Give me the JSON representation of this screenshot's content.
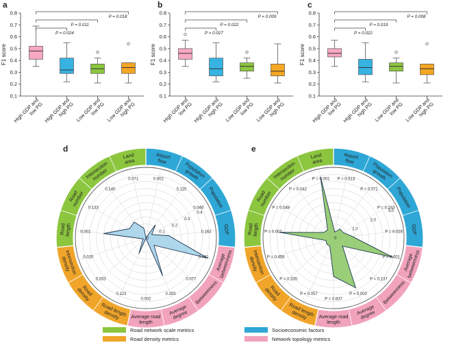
{
  "legend": [
    {
      "label": "Road network scale metrics",
      "color": "#8cc63f"
    },
    {
      "label": "Socioeconomic factors",
      "color": "#2ea7d6"
    },
    {
      "label": "Road density metrics",
      "color": "#f0a52a"
    },
    {
      "label": "Network topology metrics",
      "color": "#f2a3bc"
    }
  ],
  "chart_data": [
    {
      "panel": "a",
      "type": "box",
      "ylabel": "F1 score",
      "ylim": [
        0.1,
        0.8
      ],
      "yticks": [
        "0.1",
        "0.2",
        "0.3",
        "0.4",
        "0.5",
        "0.6",
        "0.7",
        "0.8"
      ],
      "categories": [
        "High GDP and low PG",
        "High GDP and high PG",
        "Low GDP and low PG",
        "Low GDP and high PG"
      ],
      "colors": [
        "#f7a8c2",
        "#36b3e3",
        "#8cc63f",
        "#f5a623"
      ],
      "boxes": [
        {
          "whislo": 0.35,
          "q1": 0.41,
          "med": 0.48,
          "q3": 0.52,
          "whishi": 0.69,
          "fliers": []
        },
        {
          "whislo": 0.22,
          "q1": 0.29,
          "med": 0.32,
          "q3": 0.42,
          "whishi": 0.55,
          "fliers": []
        },
        {
          "whislo": 0.21,
          "q1": 0.29,
          "med": 0.33,
          "q3": 0.37,
          "whishi": 0.42,
          "fliers": [
            0.47
          ]
        },
        {
          "whislo": 0.21,
          "q1": 0.29,
          "med": 0.34,
          "q3": 0.38,
          "whishi": 0.38,
          "fliers": [
            0.54
          ]
        }
      ],
      "pvalues": [
        {
          "from": 0,
          "to": 1,
          "text": "P = 0.024"
        },
        {
          "from": 0,
          "to": 2,
          "text": "P = 0.011"
        },
        {
          "from": 0,
          "to": 3,
          "text": "P = 0.018"
        }
      ]
    },
    {
      "panel": "b",
      "type": "box",
      "ylabel": "F1 score",
      "ylim": [
        0.1,
        0.8
      ],
      "yticks": [
        "0.1",
        "0.2",
        "0.3",
        "0.4",
        "0.5",
        "0.6",
        "0.7",
        "0.8"
      ],
      "categories": [
        "High GDP and low PG",
        "High GDP and high PG",
        "Low GDP and low PG",
        "Low GDP and high PG"
      ],
      "colors": [
        "#f7a8c2",
        "#36b3e3",
        "#8cc63f",
        "#f5a623"
      ],
      "boxes": [
        {
          "whislo": 0.35,
          "q1": 0.41,
          "med": 0.46,
          "q3": 0.5,
          "whishi": 0.57,
          "fliers": [
            0.62
          ]
        },
        {
          "whislo": 0.22,
          "q1": 0.27,
          "med": 0.33,
          "q3": 0.42,
          "whishi": 0.55,
          "fliers": []
        },
        {
          "whislo": 0.25,
          "q1": 0.31,
          "med": 0.35,
          "q3": 0.38,
          "whishi": 0.42,
          "fliers": [
            0.47
          ]
        },
        {
          "whislo": 0.21,
          "q1": 0.27,
          "med": 0.31,
          "q3": 0.37,
          "whishi": 0.54,
          "fliers": []
        }
      ],
      "pvalues": [
        {
          "from": 0,
          "to": 1,
          "text": "P = 0.027"
        },
        {
          "from": 0,
          "to": 2,
          "text": "P = 0.022"
        },
        {
          "from": 0,
          "to": 3,
          "text": "P = 0.009"
        }
      ]
    },
    {
      "panel": "c",
      "type": "box",
      "ylabel": "F1 score",
      "ylim": [
        0.1,
        0.8
      ],
      "yticks": [
        "0.1",
        "0.2",
        "0.3",
        "0.4",
        "0.5",
        "0.6",
        "0.7",
        "0.8"
      ],
      "categories": [
        "High GDP and low PG",
        "High GDP and high PG",
        "Low GDP and low PG",
        "Low GDP and high PG"
      ],
      "colors": [
        "#f7a8c2",
        "#36b3e3",
        "#8cc63f",
        "#f5a623"
      ],
      "boxes": [
        {
          "whislo": 0.35,
          "q1": 0.43,
          "med": 0.46,
          "q3": 0.5,
          "whishi": 0.57,
          "fliers": []
        },
        {
          "whislo": 0.22,
          "q1": 0.28,
          "med": 0.34,
          "q3": 0.41,
          "whishi": 0.55,
          "fliers": []
        },
        {
          "whislo": 0.21,
          "q1": 0.31,
          "med": 0.35,
          "q3": 0.38,
          "whishi": 0.42,
          "fliers": [
            0.47
          ]
        },
        {
          "whislo": 0.21,
          "q1": 0.28,
          "med": 0.33,
          "q3": 0.37,
          "whishi": 0.37,
          "fliers": [
            0.54
          ]
        }
      ],
      "pvalues": [
        {
          "from": 0,
          "to": 1,
          "text": "P = 0.022"
        },
        {
          "from": 0,
          "to": 2,
          "text": "P = 0.019"
        },
        {
          "from": 0,
          "to": 3,
          "text": "P = 0.008"
        }
      ]
    },
    {
      "panel": "d",
      "type": "radar",
      "ring_labels": [
        "0",
        "0.1",
        "0.2",
        "0.3",
        "0.4"
      ],
      "rmax": 0.5,
      "sectors": [
        {
          "label": "Airport flow",
          "category": "Socioeconomic factors"
        },
        {
          "label": "Population growth",
          "category": "Socioeconomic factors"
        },
        {
          "label": "Population",
          "category": "Socioeconomic factors"
        },
        {
          "label": "GDP",
          "category": "Socioeconomic factors"
        },
        {
          "label": "Average betweenness",
          "category": "Network topology metrics"
        },
        {
          "label": "Betweenness",
          "category": "Network topology metrics"
        },
        {
          "label": "Average degree",
          "category": "Network topology metrics"
        },
        {
          "label": "Average road length",
          "category": "Network topology metrics"
        },
        {
          "label": "Road length density",
          "category": "Road density metrics"
        },
        {
          "label": "Road density",
          "category": "Road density metrics"
        },
        {
          "label": "Intersection density",
          "category": "Road density metrics"
        },
        {
          "label": "Road length",
          "category": "Road network scale metrics"
        },
        {
          "label": "Road number",
          "category": "Road network scale metrics"
        },
        {
          "label": "Intersection number",
          "category": "Road network scale metrics"
        },
        {
          "label": "Land area",
          "category": "Road network scale metrics"
        }
      ],
      "values": [
        0.002,
        0.115,
        0.048,
        0.162,
        0.461,
        0.077,
        0.293,
        0.002,
        0.123,
        0.033,
        0.02,
        0.301,
        0.133,
        0.14,
        0.071
      ],
      "value_labels": [
        "0.002",
        "0.115",
        "0.048",
        "0.162",
        "0.461",
        "0.077",
        "0.293",
        "0.002",
        "0.123",
        "0.033",
        "0.020",
        "0.301",
        "0.133",
        "0.140",
        "0.071"
      ],
      "fill": "#a6d3ea"
    },
    {
      "panel": "e",
      "type": "radar",
      "ring_labels": [
        "0",
        "1.0",
        "2.0",
        "3.0"
      ],
      "rmax": 3.5,
      "sectors": [
        {
          "label": "Airport flow",
          "category": "Socioeconomic factors"
        },
        {
          "label": "Population growth",
          "category": "Socioeconomic factors"
        },
        {
          "label": "Population",
          "category": "Socioeconomic factors"
        },
        {
          "label": "GDP",
          "category": "Socioeconomic factors"
        },
        {
          "label": "Average betweenness",
          "category": "Network topology metrics"
        },
        {
          "label": "Betweenness",
          "category": "Network topology metrics"
        },
        {
          "label": "Average degree",
          "category": "Network topology metrics"
        },
        {
          "label": "Average road length",
          "category": "Network topology metrics"
        },
        {
          "label": "Road length density",
          "category": "Road density metrics"
        },
        {
          "label": "Road density",
          "category": "Road density metrics"
        },
        {
          "label": "Intersection density",
          "category": "Road density metrics"
        },
        {
          "label": "Road length",
          "category": "Road network scale metrics"
        },
        {
          "label": "Road number",
          "category": "Road network scale metrics"
        },
        {
          "label": "Intersection number",
          "category": "Road network scale metrics"
        },
        {
          "label": "Land area",
          "category": "Road network scale metrics"
        }
      ],
      "values": [
        0.3,
        0.55,
        0.55,
        0.9,
        3.1,
        0.6,
        2.7,
        1.9,
        0.45,
        0.45,
        0.4,
        2.7,
        0.55,
        0.5,
        3.1
      ],
      "value_labels": [
        "P = 0.613",
        "P = 0.071",
        "P = 0.243",
        "P = 0.028",
        "P = 0.001",
        "P = 0.137",
        "P = 0.002",
        "P = 0.837",
        "P = 0.057",
        "P = 0.335",
        "P = 0.456",
        "P = 0.002",
        "P = 0.048",
        "P = 0.042",
        "P = 0.001"
      ],
      "fill": "#8fc96a"
    }
  ]
}
